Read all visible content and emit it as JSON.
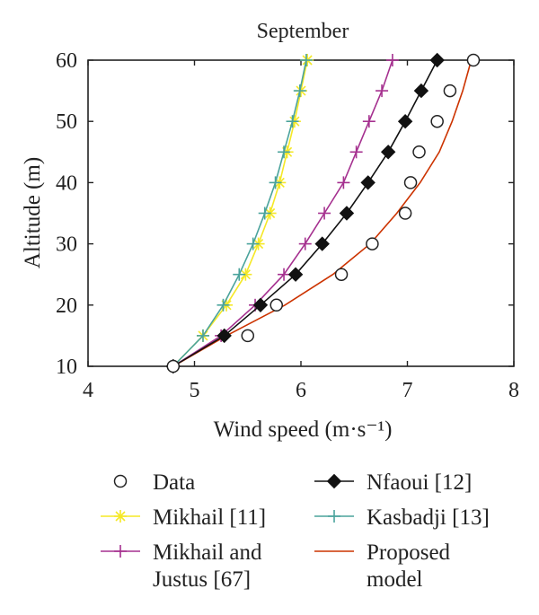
{
  "chart_data": {
    "type": "line",
    "title": "September",
    "xlabel": "Wind speed (m·s⁻¹)",
    "ylabel": "Altitude (m)",
    "xlim": [
      4,
      8
    ],
    "ylim": [
      10,
      60
    ],
    "xticks": [
      "4",
      "5",
      "6",
      "7",
      "8"
    ],
    "yticks": [
      "10",
      "20",
      "30",
      "40",
      "50",
      "60"
    ],
    "grid": false,
    "legend_position": "bottom",
    "series": [
      {
        "name": "Data",
        "style": "markers",
        "marker": "circle",
        "color": "#222222",
        "points": [
          [
            4.8,
            10
          ],
          [
            5.5,
            15
          ],
          [
            5.77,
            20
          ],
          [
            6.38,
            25
          ],
          [
            6.67,
            30
          ],
          [
            6.98,
            35
          ],
          [
            7.03,
            40
          ],
          [
            7.11,
            45
          ],
          [
            7.28,
            50
          ],
          [
            7.4,
            55
          ],
          [
            7.62,
            60
          ]
        ]
      },
      {
        "name": "Nfaoui [12]",
        "style": "line+markers",
        "marker": "diamond",
        "color": "#111111",
        "points": [
          [
            4.8,
            10
          ],
          [
            5.28,
            15
          ],
          [
            5.62,
            20
          ],
          [
            5.95,
            25
          ],
          [
            6.2,
            30
          ],
          [
            6.43,
            35
          ],
          [
            6.63,
            40
          ],
          [
            6.82,
            45
          ],
          [
            6.98,
            50
          ],
          [
            7.13,
            55
          ],
          [
            7.28,
            60
          ]
        ]
      },
      {
        "name": "Mikhail [11]",
        "style": "line+markers",
        "marker": "asterisk",
        "color": "#f5e826",
        "points": [
          [
            4.8,
            10
          ],
          [
            5.08,
            15
          ],
          [
            5.3,
            20
          ],
          [
            5.48,
            25
          ],
          [
            5.6,
            30
          ],
          [
            5.71,
            35
          ],
          [
            5.8,
            40
          ],
          [
            5.87,
            45
          ],
          [
            5.94,
            50
          ],
          [
            6.0,
            55
          ],
          [
            6.06,
            60
          ]
        ]
      },
      {
        "name": "Kasbadji [13]",
        "style": "line+markers",
        "marker": "plus",
        "color": "#4aa39c",
        "points": [
          [
            4.8,
            10
          ],
          [
            5.08,
            15
          ],
          [
            5.27,
            20
          ],
          [
            5.42,
            25
          ],
          [
            5.55,
            30
          ],
          [
            5.66,
            35
          ],
          [
            5.76,
            40
          ],
          [
            5.84,
            45
          ],
          [
            5.92,
            50
          ],
          [
            5.99,
            55
          ],
          [
            6.05,
            60
          ]
        ]
      },
      {
        "name": "Mikhail and\nJustus [67]",
        "style": "line+markers",
        "marker": "plus",
        "color": "#a5308f",
        "points": [
          [
            4.8,
            10
          ],
          [
            5.25,
            15
          ],
          [
            5.57,
            20
          ],
          [
            5.84,
            25
          ],
          [
            6.04,
            30
          ],
          [
            6.22,
            35
          ],
          [
            6.4,
            40
          ],
          [
            6.52,
            45
          ],
          [
            6.64,
            50
          ],
          [
            6.76,
            55
          ],
          [
            6.86,
            60
          ]
        ]
      },
      {
        "name": "Proposed\nmodel",
        "style": "line",
        "marker": "none",
        "color": "#cc3300",
        "points": [
          [
            4.8,
            10
          ],
          [
            5.3,
            15
          ],
          [
            5.85,
            20
          ],
          [
            6.3,
            25
          ],
          [
            6.65,
            30
          ],
          [
            6.9,
            35
          ],
          [
            7.12,
            40
          ],
          [
            7.3,
            45
          ],
          [
            7.42,
            50
          ],
          [
            7.52,
            55
          ],
          [
            7.6,
            60
          ]
        ]
      }
    ]
  }
}
